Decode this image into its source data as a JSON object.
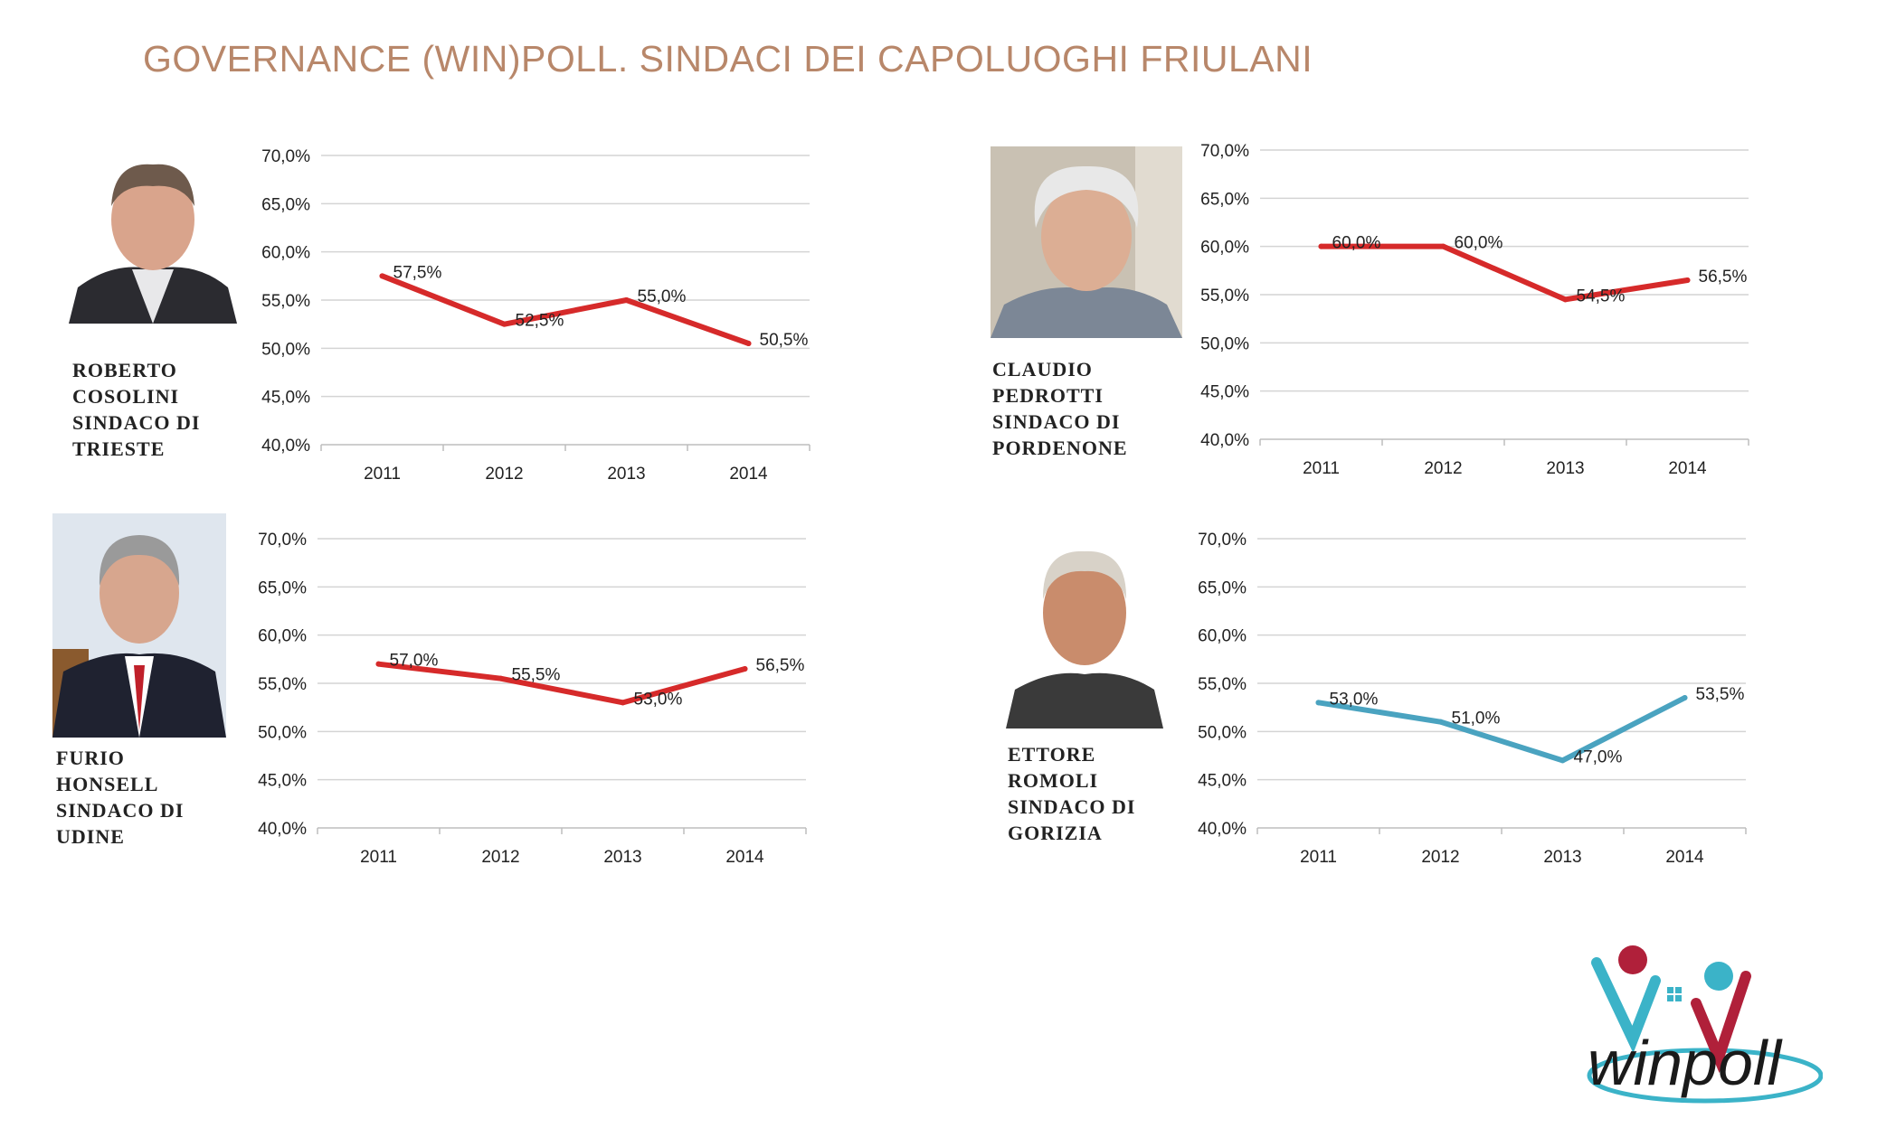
{
  "title": "GOVERNANCE (WIN)POLL. SINDACI DEI CAPOLUOGHI FRIULANI",
  "panels": [
    {
      "caption": [
        "ROBERTO",
        "COSOLINI",
        "SINDACO DI",
        "TRIESTE"
      ],
      "portrait_icon": "mayor-portrait-photo",
      "color": "#d62a2a"
    },
    {
      "caption": [
        "CLAUDIO",
        "PEDROTTI",
        "SINDACO DI",
        "PORDENONE"
      ],
      "portrait_icon": "mayor-portrait-photo",
      "color": "#d62a2a"
    },
    {
      "caption": [
        "FURIO",
        "HONSELL",
        "SINDACO DI",
        "UDINE"
      ],
      "portrait_icon": "mayor-portrait-photo",
      "color": "#d62a2a"
    },
    {
      "caption": [
        "ETTORE",
        "ROMOLI",
        "SINDACO DI",
        "GORIZIA"
      ],
      "portrait_icon": "mayor-portrait-photo",
      "color": "#4aa3c0"
    }
  ],
  "chart_data": [
    {
      "type": "line",
      "categories": [
        "2011",
        "2012",
        "2013",
        "2014"
      ],
      "series": [
        {
          "values": [
            57.5,
            52.5,
            55.0,
            50.5
          ],
          "labels": [
            "57,5%",
            "52,5%",
            "55,0%",
            "50,5%"
          ]
        }
      ],
      "ylim": [
        40,
        70
      ],
      "yticks": [
        "70,0%",
        "65,0%",
        "60,0%",
        "55,0%",
        "50,0%",
        "45,0%",
        "40,0%"
      ],
      "grid": true
    },
    {
      "type": "line",
      "categories": [
        "2011",
        "2012",
        "2013",
        "2014"
      ],
      "series": [
        {
          "values": [
            60.0,
            60.0,
            54.5,
            56.5
          ],
          "labels": [
            "60,0%",
            "60,0%",
            "54,5%",
            "56,5%"
          ]
        }
      ],
      "ylim": [
        40,
        70
      ],
      "yticks": [
        "70,0%",
        "65,0%",
        "60,0%",
        "55,0%",
        "50,0%",
        "45,0%",
        "40,0%"
      ],
      "grid": true
    },
    {
      "type": "line",
      "categories": [
        "2011",
        "2012",
        "2013",
        "2014"
      ],
      "series": [
        {
          "values": [
            57.0,
            55.5,
            53.0,
            56.5
          ],
          "labels": [
            "57,0%",
            "55,5%",
            "53,0%",
            "56,5%"
          ]
        }
      ],
      "ylim": [
        40,
        70
      ],
      "yticks": [
        "70,0%",
        "65,0%",
        "60,0%",
        "55,0%",
        "50,0%",
        "45,0%",
        "40,0%"
      ],
      "grid": true
    },
    {
      "type": "line",
      "categories": [
        "2011",
        "2012",
        "2013",
        "2014"
      ],
      "series": [
        {
          "values": [
            53.0,
            51.0,
            47.0,
            53.5
          ],
          "labels": [
            "53,0%",
            "51,0%",
            "47,0%",
            "53,5%"
          ]
        }
      ],
      "ylim": [
        40,
        70
      ],
      "yticks": [
        "70,0%",
        "65,0%",
        "60,0%",
        "55,0%",
        "50,0%",
        "45,0%",
        "40,0%"
      ],
      "grid": true
    }
  ],
  "logo": {
    "text": "winpoll",
    "icon": "winpoll-logo",
    "colors": {
      "red": "#b0203a",
      "teal": "#3bb3c8",
      "dark": "#1a1a1a"
    }
  }
}
